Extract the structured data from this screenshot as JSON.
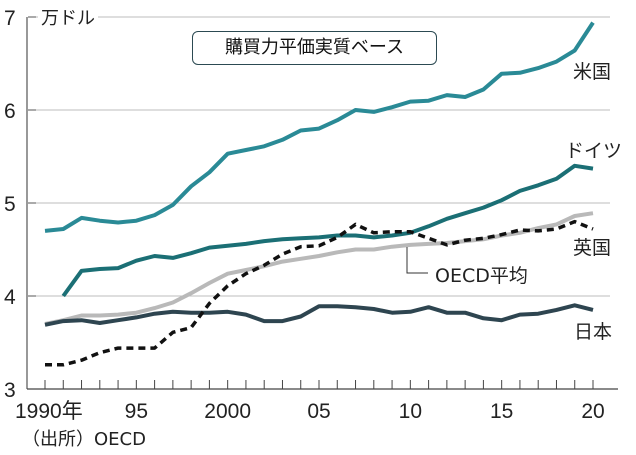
{
  "chart_data": {
    "type": "line",
    "title": "購買力平価実質ベース",
    "unit_label": "万ドル",
    "source": "（出所）OECD",
    "xlabel": "",
    "ylabel": "万ドル",
    "ylim": [
      3,
      7
    ],
    "xlim": [
      1990,
      2020
    ],
    "yticks": [
      3,
      4,
      5,
      6,
      7
    ],
    "ytick_labels": [
      "3",
      "4",
      "5",
      "6",
      "7"
    ],
    "xtick_labels": [
      {
        "year": 1990,
        "label": "1990年"
      },
      {
        "year": 1995,
        "label": "95"
      },
      {
        "year": 2000,
        "label": "2000"
      },
      {
        "year": 2005,
        "label": "05"
      },
      {
        "year": 2010,
        "label": "10"
      },
      {
        "year": 2015,
        "label": "15"
      },
      {
        "year": 2020,
        "label": "20"
      }
    ],
    "grid": "horizontal",
    "x": [
      1990,
      1991,
      1992,
      1993,
      1994,
      1995,
      1996,
      1997,
      1998,
      1999,
      2000,
      2001,
      2002,
      2003,
      2004,
      2005,
      2006,
      2007,
      2008,
      2009,
      2010,
      2011,
      2012,
      2013,
      2014,
      2015,
      2016,
      2017,
      2018,
      2019,
      2020
    ],
    "series": [
      {
        "name": "米国",
        "color": "#2a8a96",
        "style": "solid",
        "values": [
          4.7,
          4.72,
          4.84,
          4.81,
          4.79,
          4.81,
          4.87,
          4.98,
          5.18,
          5.33,
          5.53,
          5.57,
          5.61,
          5.68,
          5.78,
          5.8,
          5.89,
          6.0,
          5.98,
          6.03,
          6.09,
          6.1,
          6.16,
          6.14,
          6.22,
          6.39,
          6.4,
          6.45,
          6.52,
          6.64,
          6.94
        ]
      },
      {
        "name": "ドイツ",
        "color": "#1b6f75",
        "style": "solid",
        "values": [
          null,
          4.0,
          4.27,
          4.29,
          4.3,
          4.38,
          4.43,
          4.41,
          4.46,
          4.52,
          4.54,
          4.56,
          4.59,
          4.61,
          4.62,
          4.63,
          4.65,
          4.65,
          4.63,
          4.65,
          4.68,
          4.75,
          4.83,
          4.89,
          4.95,
          5.03,
          5.13,
          5.19,
          5.26,
          5.4,
          5.37
        ]
      },
      {
        "name": "OECD平均",
        "color": "#b9b9b9",
        "style": "solid",
        "values": [
          3.7,
          3.74,
          3.79,
          3.79,
          3.8,
          3.82,
          3.87,
          3.93,
          4.03,
          4.14,
          4.24,
          4.28,
          4.32,
          4.37,
          4.4,
          4.43,
          4.47,
          4.5,
          4.5,
          4.53,
          4.55,
          4.56,
          4.57,
          4.59,
          4.61,
          4.65,
          4.68,
          4.73,
          4.77,
          4.86,
          4.89
        ]
      },
      {
        "name": "英国",
        "color": "#111111",
        "style": "dashed",
        "values": [
          3.26,
          3.26,
          3.31,
          3.39,
          3.44,
          3.44,
          3.44,
          3.61,
          3.66,
          3.92,
          4.11,
          4.24,
          4.33,
          4.45,
          4.53,
          4.54,
          4.63,
          4.77,
          4.68,
          4.69,
          4.69,
          4.62,
          4.55,
          4.6,
          4.62,
          4.66,
          4.71,
          4.7,
          4.72,
          4.8,
          4.72
        ]
      },
      {
        "name": "日本",
        "color": "#2e4550",
        "style": "solid",
        "values": [
          3.69,
          3.73,
          3.74,
          3.71,
          3.74,
          3.77,
          3.81,
          3.83,
          3.82,
          3.82,
          3.83,
          3.8,
          3.73,
          3.73,
          3.78,
          3.89,
          3.89,
          3.88,
          3.86,
          3.82,
          3.83,
          3.88,
          3.82,
          3.82,
          3.76,
          3.74,
          3.8,
          3.81,
          3.85,
          3.9,
          3.85
        ]
      }
    ]
  }
}
